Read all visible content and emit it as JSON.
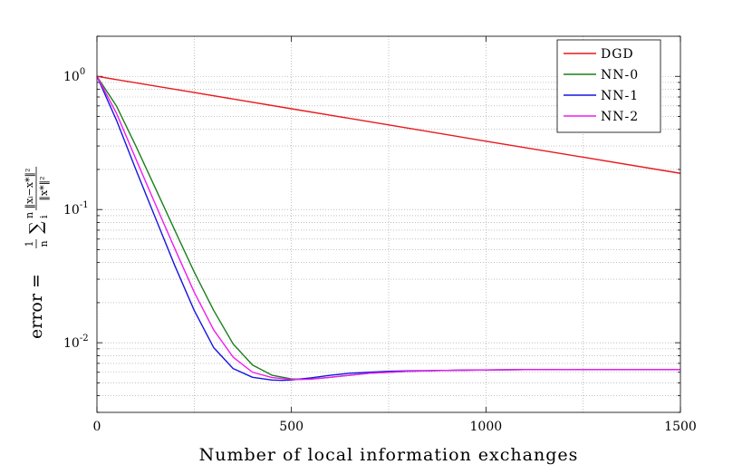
{
  "chart_data": {
    "type": "line",
    "xlabel": "Number of local information exchanges",
    "ylabel": {
      "prefix": "error =",
      "frac_num": "1",
      "frac_den": "n",
      "sum": "∑",
      "sum_sup": "n",
      "sum_sub": "i",
      "norm_num": "‖xᵢ−x*‖²",
      "norm_den": "‖x*‖²"
    },
    "xlim": [
      0,
      1500
    ],
    "ylim": [
      0.003,
      2
    ],
    "yscale": "log",
    "grid": true,
    "legend_position": "top-right",
    "x_ticks": [
      {
        "value": 0,
        "label": "0"
      },
      {
        "value": 500,
        "label": "500"
      },
      {
        "value": 1000,
        "label": "1000"
      },
      {
        "value": 1500,
        "label": "1500"
      }
    ],
    "y_ticks": [
      {
        "value": 1,
        "base": "10",
        "exp": "0"
      },
      {
        "value": 0.1,
        "base": "10",
        "exp": "-1"
      },
      {
        "value": 0.01,
        "base": "10",
        "exp": "-2"
      }
    ],
    "series": [
      {
        "name": "DGD",
        "color": "#e8191c",
        "x": [
          0,
          250,
          500,
          750,
          1000,
          1250,
          1500
        ],
        "y": [
          1.0,
          0.756,
          0.571,
          0.432,
          0.326,
          0.247,
          0.187
        ]
      },
      {
        "name": "NN-0",
        "color": "#1a7f1a",
        "x": [
          0,
          50,
          100,
          150,
          200,
          250,
          300,
          350,
          400,
          450,
          500,
          525,
          550,
          600,
          650,
          700,
          750,
          800,
          900,
          1000,
          1100,
          1200,
          1300,
          1400,
          1500
        ],
        "y": [
          1.0,
          0.6,
          0.3,
          0.145,
          0.07,
          0.034,
          0.0175,
          0.0098,
          0.0068,
          0.0057,
          0.00535,
          0.00532,
          0.00534,
          0.0055,
          0.0057,
          0.0059,
          0.006,
          0.0061,
          0.0062,
          0.00625,
          0.00628,
          0.0063,
          0.0063,
          0.0063,
          0.0063
        ]
      },
      {
        "name": "NN-1",
        "color": "#1515e0",
        "x": [
          0,
          50,
          100,
          150,
          200,
          250,
          300,
          350,
          400,
          450,
          475,
          500,
          525,
          550,
          600,
          650,
          700,
          750,
          800,
          900,
          1000,
          1100,
          1200,
          1300,
          1400,
          1500
        ],
        "y": [
          1.0,
          0.47,
          0.2,
          0.087,
          0.038,
          0.0175,
          0.0092,
          0.0064,
          0.0055,
          0.00525,
          0.00522,
          0.00525,
          0.00535,
          0.00545,
          0.0057,
          0.0059,
          0.006,
          0.0061,
          0.00615,
          0.0062,
          0.00625,
          0.00628,
          0.0063,
          0.0063,
          0.0063,
          0.0063
        ]
      },
      {
        "name": "NN-2",
        "color": "#ee1dee",
        "x": [
          0,
          50,
          100,
          150,
          200,
          250,
          300,
          350,
          400,
          450,
          500,
          525,
          550,
          600,
          650,
          700,
          750,
          800,
          900,
          1000,
          1100,
          1200,
          1300,
          1400,
          1500
        ],
        "y": [
          1.0,
          0.53,
          0.24,
          0.11,
          0.051,
          0.024,
          0.0125,
          0.0078,
          0.006,
          0.00548,
          0.0053,
          0.0053,
          0.00532,
          0.0055,
          0.0057,
          0.0059,
          0.006,
          0.0061,
          0.0062,
          0.00625,
          0.00628,
          0.0063,
          0.0063,
          0.0063,
          0.0063
        ]
      }
    ]
  }
}
